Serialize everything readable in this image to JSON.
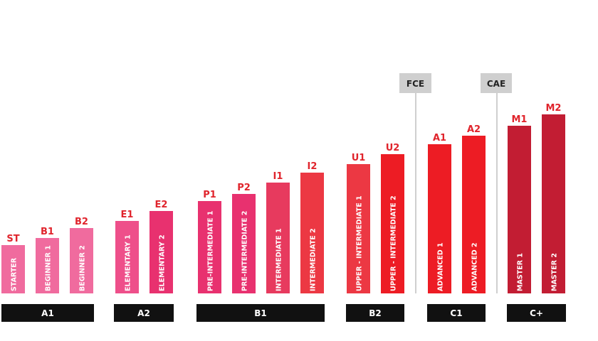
{
  "chart_data": {
    "type": "bar",
    "title": "",
    "xlabel": "",
    "ylabel": "",
    "bars": [
      {
        "code": "ST",
        "name": "STARTER",
        "value": 68,
        "color": "#f06b9e"
      },
      {
        "code": "B1",
        "name": "BEGINNER 1",
        "value": 78,
        "color": "#f06b9e"
      },
      {
        "code": "B2",
        "name": "BEGINNER 2",
        "value": 92,
        "color": "#f06b9e"
      },
      {
        "code": "E1",
        "name": "ELEMENTARY 1",
        "value": 102,
        "color": "#ee4f8a"
      },
      {
        "code": "E2",
        "name": "ELEMENTARY 2",
        "value": 116,
        "color": "#e8316f"
      },
      {
        "code": "P1",
        "name": "PRE-INTERMEDIATE 1",
        "value": 130,
        "color": "#e8316f"
      },
      {
        "code": "P2",
        "name": "PRE-INTERMEDIATE 2",
        "value": 140,
        "color": "#e8316f"
      },
      {
        "code": "I1",
        "name": "INTERMEDIATE 1",
        "value": 156,
        "color": "#e73a5e"
      },
      {
        "code": "I2",
        "name": "INTERMEDIATE 2",
        "value": 170,
        "color": "#ec3843"
      },
      {
        "code": "U1",
        "name": "UPPER - INTERMEDIATE 1",
        "value": 182,
        "color": "#ec3843"
      },
      {
        "code": "U2",
        "name": "UPPER - INTERMEDIATE 2",
        "value": 196,
        "color": "#ed1c24"
      },
      {
        "code": "A1",
        "name": "ADVANCED 1",
        "value": 210,
        "color": "#ed1c24"
      },
      {
        "code": "A2",
        "name": "ADVANCED 2",
        "value": 222,
        "color": "#ed1c24"
      },
      {
        "code": "M1",
        "name": "MASTER 1",
        "value": 236,
        "color": "#c21d33"
      },
      {
        "code": "M2",
        "name": "MASTER 2",
        "value": 252,
        "color": "#c21d33"
      }
    ],
    "groups": [
      {
        "label": "A1",
        "bars": [
          0,
          2
        ]
      },
      {
        "label": "A2",
        "bars": [
          3,
          4
        ]
      },
      {
        "label": "B1",
        "bars": [
          5,
          8
        ]
      },
      {
        "label": "B2",
        "bars": [
          9,
          10
        ]
      },
      {
        "label": "C1",
        "bars": [
          11,
          12
        ]
      },
      {
        "label": "C+",
        "bars": [
          13,
          14
        ]
      }
    ],
    "exams": [
      {
        "label": "FCE",
        "between_bars": [
          10,
          11
        ]
      },
      {
        "label": "CAE",
        "between_bars": [
          12,
          13
        ]
      }
    ],
    "code_label_color": "#e0242c",
    "group_box_color": "#111111",
    "exam_box_color": "#cfcfcf"
  }
}
